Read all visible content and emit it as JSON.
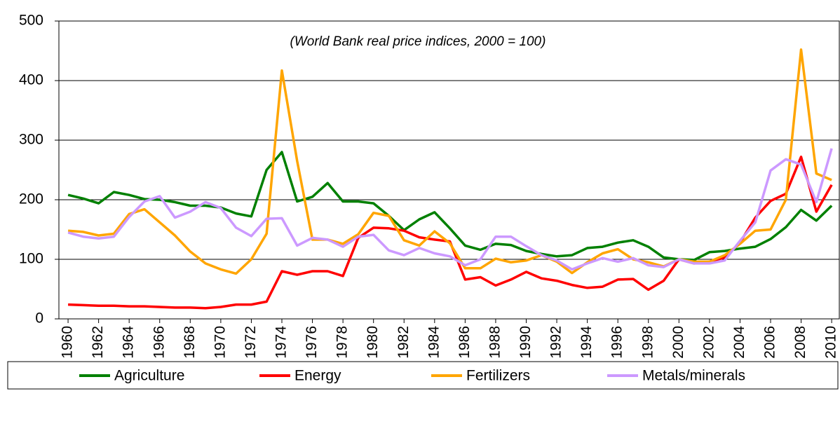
{
  "chart_data": {
    "type": "line",
    "subtitle": "(World Bank real price indices, 2000 = 100)",
    "x": [
      1960,
      1961,
      1962,
      1963,
      1964,
      1965,
      1966,
      1967,
      1968,
      1969,
      1970,
      1971,
      1972,
      1973,
      1974,
      1975,
      1976,
      1977,
      1978,
      1979,
      1980,
      1981,
      1982,
      1983,
      1984,
      1985,
      1986,
      1987,
      1988,
      1989,
      1990,
      1991,
      1992,
      1993,
      1994,
      1995,
      1996,
      1997,
      1998,
      1999,
      2000,
      2001,
      2002,
      2003,
      2004,
      2005,
      2006,
      2007,
      2008,
      2009,
      2010
    ],
    "xlim": [
      1959.4,
      2010.5
    ],
    "xticks": [
      1960,
      1962,
      1964,
      1966,
      1968,
      1970,
      1972,
      1974,
      1976,
      1978,
      1980,
      1982,
      1984,
      1986,
      1988,
      1990,
      1992,
      1994,
      1996,
      1998,
      2000,
      2002,
      2004,
      2006,
      2008,
      2010
    ],
    "ylim": [
      0,
      500
    ],
    "yticks": [
      0,
      100,
      200,
      300,
      400,
      500
    ],
    "grid": true,
    "legend": "bottom",
    "series": [
      {
        "name": "Agriculture",
        "color": "#008000",
        "values": [
          208,
          202,
          194,
          213,
          208,
          201,
          200,
          196,
          190,
          190,
          187,
          177,
          172,
          250,
          280,
          197,
          205,
          228,
          197,
          197,
          194,
          173,
          149,
          167,
          179,
          152,
          123,
          116,
          126,
          124,
          114,
          109,
          105,
          107,
          119,
          121,
          128,
          132,
          121,
          103,
          100,
          99,
          112,
          114,
          118,
          121,
          134,
          154,
          183,
          165,
          190
        ]
      },
      {
        "name": "Energy",
        "color": "#ff0000",
        "values": [
          24,
          23,
          22,
          22,
          21,
          21,
          20,
          19,
          19,
          18,
          20,
          24,
          24,
          29,
          80,
          74,
          80,
          80,
          72,
          136,
          153,
          152,
          148,
          137,
          133,
          130,
          66,
          70,
          56,
          66,
          79,
          68,
          64,
          57,
          52,
          54,
          66,
          67,
          49,
          64,
          100,
          93,
          96,
          103,
          128,
          170,
          198,
          210,
          272,
          180,
          225
        ]
      },
      {
        "name": "Fertilizers",
        "color": "#ffa500",
        "values": [
          148,
          146,
          140,
          143,
          176,
          184,
          162,
          140,
          113,
          93,
          83,
          76,
          100,
          143,
          417,
          265,
          133,
          133,
          126,
          142,
          178,
          173,
          132,
          123,
          147,
          127,
          85,
          85,
          101,
          95,
          98,
          107,
          96,
          77,
          95,
          110,
          117,
          100,
          95,
          88,
          100,
          96,
          96,
          107,
          126,
          148,
          150,
          200,
          452,
          244,
          233
        ]
      },
      {
        "name": "Metals/minerals",
        "color": "#cc99ff",
        "values": [
          145,
          138,
          135,
          138,
          171,
          197,
          206,
          170,
          180,
          196,
          186,
          153,
          139,
          168,
          169,
          123,
          136,
          133,
          121,
          138,
          141,
          115,
          107,
          119,
          110,
          105,
          90,
          100,
          138,
          138,
          122,
          107,
          98,
          83,
          93,
          102,
          96,
          102,
          90,
          87,
          100,
          93,
          93,
          98,
          131,
          162,
          249,
          268,
          259,
          196,
          286
        ]
      }
    ]
  }
}
